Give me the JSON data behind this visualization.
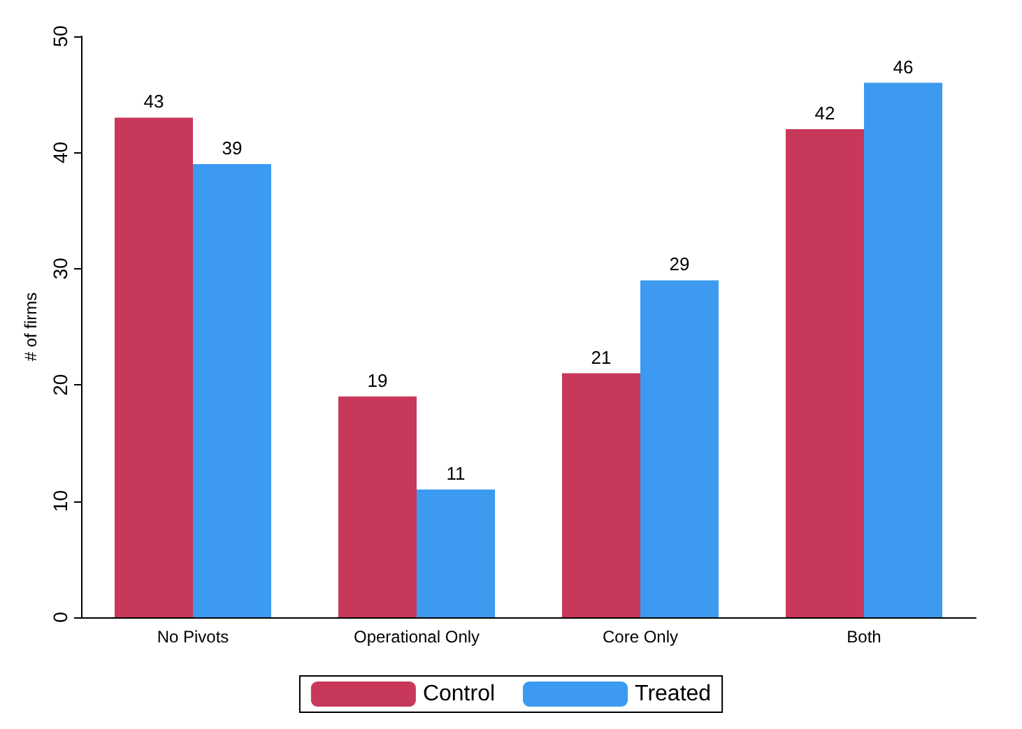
{
  "chart_data": {
    "type": "bar",
    "ylabel": "# of firms",
    "categories": [
      "No Pivots",
      "Operational Only",
      "Core Only",
      "Both"
    ],
    "series": [
      {
        "name": "Control",
        "color": "#c8385a",
        "values": [
          43,
          19,
          21,
          42
        ]
      },
      {
        "name": "Treated",
        "color": "#3c9bf0",
        "values": [
          39,
          11,
          29,
          46
        ]
      }
    ],
    "ylim": [
      0,
      50
    ],
    "yticks": [
      0,
      10,
      20,
      30,
      40,
      50
    ],
    "grid": false,
    "legend": "bottom",
    "data_labels": true
  }
}
